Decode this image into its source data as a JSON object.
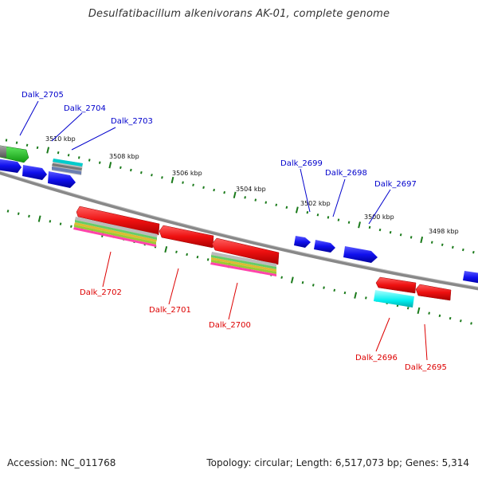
{
  "title": "Desulfatibacillum alkenivorans AK-01, complete genome",
  "footer": {
    "accession": "Accession: NC_011768",
    "topology": "Topology: circular; Length: 6,517,073 bp; Genes: 5,314"
  },
  "scale_labels": [
    {
      "id": "3510",
      "text": "3510 kbp"
    },
    {
      "id": "3508",
      "text": "3508 kbp"
    },
    {
      "id": "3506",
      "text": "3506 kbp"
    },
    {
      "id": "3504",
      "text": "3504 kbp"
    },
    {
      "id": "3502",
      "text": "3502 kbp"
    },
    {
      "id": "3500",
      "text": "3500 kbp"
    },
    {
      "id": "3498",
      "text": "3498 kbp"
    }
  ],
  "genes": {
    "forward": [
      {
        "id": "2705",
        "label": "Dalk_2705",
        "color": "#0000cc"
      },
      {
        "id": "2704",
        "label": "Dalk_2704",
        "color": "#0000cc"
      },
      {
        "id": "2703",
        "label": "Dalk_2703",
        "color": "#0000cc"
      },
      {
        "id": "2699",
        "label": "Dalk_2699",
        "color": "#0000cc"
      },
      {
        "id": "2698",
        "label": "Dalk_2698",
        "color": "#0000cc"
      },
      {
        "id": "2697",
        "label": "Dalk_2697",
        "color": "#0000cc"
      }
    ],
    "reverse": [
      {
        "id": "2702",
        "label": "Dalk_2702",
        "color": "#dd0000"
      },
      {
        "id": "2701",
        "label": "Dalk_2701",
        "color": "#dd0000"
      },
      {
        "id": "2700",
        "label": "Dalk_2700",
        "color": "#dd0000"
      },
      {
        "id": "2696",
        "label": "Dalk_2696",
        "color": "#dd0000"
      },
      {
        "id": "2695",
        "label": "Dalk_2695",
        "color": "#dd0000"
      }
    ]
  },
  "colors": {
    "forward_gene": "#1010ee",
    "reverse_gene": "#ee1010",
    "backbone": "#888888",
    "tick": "#1a7a1a",
    "forward_label": "#0000cc",
    "reverse_label": "#dd0000"
  }
}
